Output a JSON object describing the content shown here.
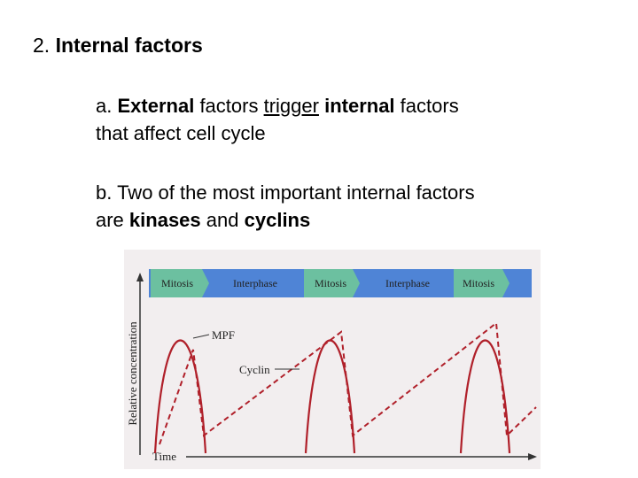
{
  "heading": {
    "number": "2.",
    "text": "Internal factors"
  },
  "points": [
    {
      "label": "a.",
      "runs": [
        "External",
        "factors",
        "trigger",
        "internal",
        "factors",
        "that affect cell cycle"
      ]
    },
    {
      "label": "b.",
      "runs": [
        "Two of the most important internal factors",
        "are",
        "kinases",
        "and",
        "cyclins"
      ]
    }
  ],
  "figure": {
    "phases": [
      "Mitosis",
      "Interphase",
      "Mitosis",
      "Interphase",
      "Mitosis"
    ],
    "curves": [
      "MPF",
      "Cyclin"
    ],
    "y_axis": "Relative concentration",
    "x_axis": "Time"
  }
}
